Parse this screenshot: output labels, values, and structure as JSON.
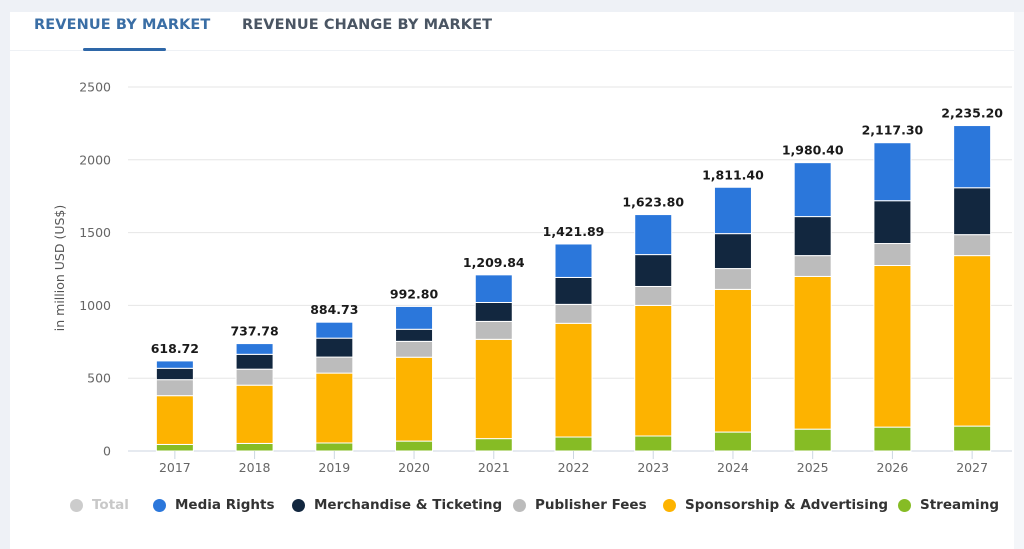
{
  "tabs": [
    {
      "label": "REVENUE BY MARKET",
      "active": true
    },
    {
      "label": "REVENUE CHANGE BY MARKET",
      "active": false
    }
  ],
  "chart_data": {
    "type": "bar",
    "stacked": true,
    "title": "",
    "xlabel": "",
    "ylabel": "in million USD (US$)",
    "ylim": [
      0,
      2500
    ],
    "yticks": [
      0,
      500,
      1000,
      1500,
      2000,
      2500
    ],
    "grid": true,
    "legend_position": "bottom",
    "categories": [
      "2017",
      "2018",
      "2019",
      "2020",
      "2021",
      "2022",
      "2023",
      "2024",
      "2025",
      "2026",
      "2027"
    ],
    "totals": [
      618.72,
      737.78,
      884.73,
      992.8,
      1209.84,
      1421.89,
      1623.8,
      1811.4,
      1980.4,
      2117.3,
      2235.2
    ],
    "total_labels": [
      "618.72",
      "737.78",
      "884.73",
      "992.80",
      "1,209.84",
      "1,421.89",
      "1,623.80",
      "1,811.40",
      "1,980.40",
      "2,117.30",
      "2,235.20"
    ],
    "series": [
      {
        "name": "Streaming",
        "color": "#86bc25",
        "values": [
          45,
          52,
          55,
          68,
          85,
          96,
          103,
          130,
          150,
          164,
          171
        ]
      },
      {
        "name": "Sponsorship & Advertising",
        "color": "#fdb300",
        "values": [
          335,
          400,
          480,
          576,
          682,
          781,
          897,
          980,
          1049,
          1110,
          1171
        ]
      },
      {
        "name": "Publisher Fees",
        "color": "#bcbcbc",
        "values": [
          110,
          110,
          110,
          109,
          123,
          130,
          130,
          143,
          143,
          151,
          144
        ]
      },
      {
        "name": "Merchandise & Ticketing",
        "color": "#12273f",
        "values": [
          78,
          102,
          130,
          83,
          130,
          185,
          219,
          240,
          268,
          294,
          322
        ]
      },
      {
        "name": "Media Rights",
        "color": "#2b77db",
        "values": [
          50.72,
          73.78,
          109.73,
          156.8,
          189.84,
          229.89,
          274.8,
          318.4,
          370.4,
          398.3,
          427.2
        ]
      }
    ]
  },
  "legend": [
    {
      "label": "Total",
      "color": "#cccccc",
      "hidden": true
    },
    {
      "label": "Media Rights",
      "color": "#2b77db",
      "hidden": false
    },
    {
      "label": "Merchandise & Ticketing",
      "color": "#12273f",
      "hidden": false
    },
    {
      "label": "Publisher Fees",
      "color": "#bcbcbc",
      "hidden": false
    },
    {
      "label": "Sponsorship & Advertising",
      "color": "#fdb300",
      "hidden": false
    },
    {
      "label": "Streaming",
      "color": "#86bc25",
      "hidden": false
    }
  ]
}
